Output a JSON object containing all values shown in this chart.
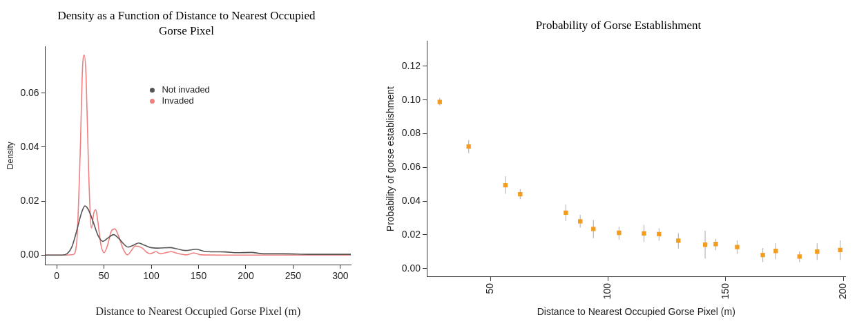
{
  "chart_data": [
    {
      "type": "line",
      "title": "Density as a Function of Distance to Nearest Occupied Gorse Pixel",
      "xlabel": "Distance to Nearest Occupied Gorse Pixel (m)",
      "ylabel": "Density",
      "legend": "top",
      "marker": "none",
      "series": [
        {
          "name": "Not invaded",
          "color": "#555555",
          "x": [
            -12,
            5.8,
            10.9,
            16,
            21,
            26.1,
            29.9,
            33.7,
            38.7,
            43.8,
            48.9,
            54,
            60.3,
            65.3,
            70.4,
            75.4,
            81.8,
            86.8,
            91.9,
            99.5,
            107.1,
            119.7,
            127.3,
            136.2,
            147.6,
            157.7,
            178,
            190.6,
            205.8,
            218.5,
            241,
            267,
            311
          ],
          "values": [
            0,
            0,
            0.0005,
            0.003,
            0.0088,
            0.0155,
            0.0182,
            0.0167,
            0.0122,
            0.0072,
            0.0051,
            0.0063,
            0.0076,
            0.0063,
            0.0043,
            0.003,
            0.0038,
            0.0045,
            0.0038,
            0.0028,
            0.0026,
            0.0028,
            0.0023,
            0.0017,
            0.0022,
            0.0013,
            0.0012,
            0.0009,
            0.001,
            0.0005,
            0.0005,
            0.0003,
            0.0003
          ]
        },
        {
          "name": "Invaded",
          "color": "#f08080",
          "x": [
            -12,
            10.9,
            17.2,
            21,
            24.8,
            27.3,
            29.1,
            31.1,
            33.7,
            36.7,
            39.2,
            41.3,
            43.3,
            46.8,
            50.1,
            53.9,
            57.7,
            61.5,
            65.3,
            70.4,
            74.7,
            79.2,
            83,
            90.6,
            94.4,
            99,
            105,
            109.6,
            121,
            127.3,
            137.5,
            145,
            152.7,
            178,
            240,
            311
          ],
          "values": [
            0,
            0,
            0.0002,
            0.004,
            0.037,
            0.069,
            0.074,
            0.066,
            0.032,
            0.01,
            0.0155,
            0.0168,
            0.013,
            0.0038,
            0.0009,
            0.0038,
            0.0088,
            0.0097,
            0.0072,
            0.0022,
            0.0001,
            0.0018,
            0.0034,
            0.0026,
            0.0013,
            0.0005,
            0.0013,
            0.0005,
            0.0013,
            0.0007,
            0.0001,
            0.0008,
            0.0001,
            0,
            0,
            0
          ]
        }
      ],
      "xlim": [
        -12,
        311
      ],
      "xticks": [
        0,
        50,
        100,
        150,
        200,
        250,
        300
      ],
      "ylim": [
        -0.0035,
        0.0772
      ],
      "yticks": [
        {
          "value": 0,
          "label": "0.00"
        },
        {
          "value": 0.02,
          "label": "0.02"
        },
        {
          "value": 0.04,
          "label": "0.04"
        },
        {
          "value": 0.06,
          "label": "0.06"
        }
      ]
    },
    {
      "type": "scatter",
      "title": "Probability of Gorse Establishment",
      "xlabel": "Distance to Nearest Occupied Gorse Pixel (m)",
      "ylabel": "Probability of gorse establishment",
      "marker": "square",
      "color": "#f39c1f",
      "x": [
        28.5,
        40.8,
        56.4,
        62.7,
        82.1,
        88.2,
        93.8,
        104.7,
        115.3,
        121.7,
        129.9,
        141.3,
        145.8,
        154.9,
        165.8,
        171.3,
        181.4,
        188.9,
        198.7
      ],
      "values": [
        0.0988,
        0.0724,
        0.0494,
        0.0441,
        0.0331,
        0.028,
        0.0235,
        0.0212,
        0.0208,
        0.0204,
        0.0165,
        0.0141,
        0.0145,
        0.0127,
        0.008,
        0.0104,
        0.0071,
        0.01,
        0.011
      ],
      "errors": [
        [
          0.0967,
          0.1012
        ],
        [
          0.0684,
          0.0763
        ],
        [
          0.0443,
          0.0547
        ],
        [
          0.0412,
          0.0471
        ],
        [
          0.0282,
          0.038
        ],
        [
          0.0243,
          0.0318
        ],
        [
          0.018,
          0.0288
        ],
        [
          0.0171,
          0.0249
        ],
        [
          0.0157,
          0.0259
        ],
        [
          0.0165,
          0.0239
        ],
        [
          0.0118,
          0.021
        ],
        [
          0.0059,
          0.0224
        ],
        [
          0.0108,
          0.0176
        ],
        [
          0.0086,
          0.0167
        ],
        [
          0.0039,
          0.0122
        ],
        [
          0.0055,
          0.0149
        ],
        [
          0.0039,
          0.0102
        ],
        [
          0.0051,
          0.0149
        ],
        [
          0.0051,
          0.0167
        ]
      ],
      "xlim": [
        23,
        201
      ],
      "xticks": [
        50,
        100,
        150,
        200
      ],
      "ylim": [
        -0.005,
        0.135
      ],
      "yticks": [
        {
          "value": 0,
          "label": "0.00"
        },
        {
          "value": 0.02,
          "label": "0.02"
        },
        {
          "value": 0.04,
          "label": "0.04"
        },
        {
          "value": 0.06,
          "label": "0.06"
        },
        {
          "value": 0.08,
          "label": "0.08"
        },
        {
          "value": 0.1,
          "label": "0.10"
        },
        {
          "value": 0.12,
          "label": "0.12"
        }
      ]
    }
  ]
}
